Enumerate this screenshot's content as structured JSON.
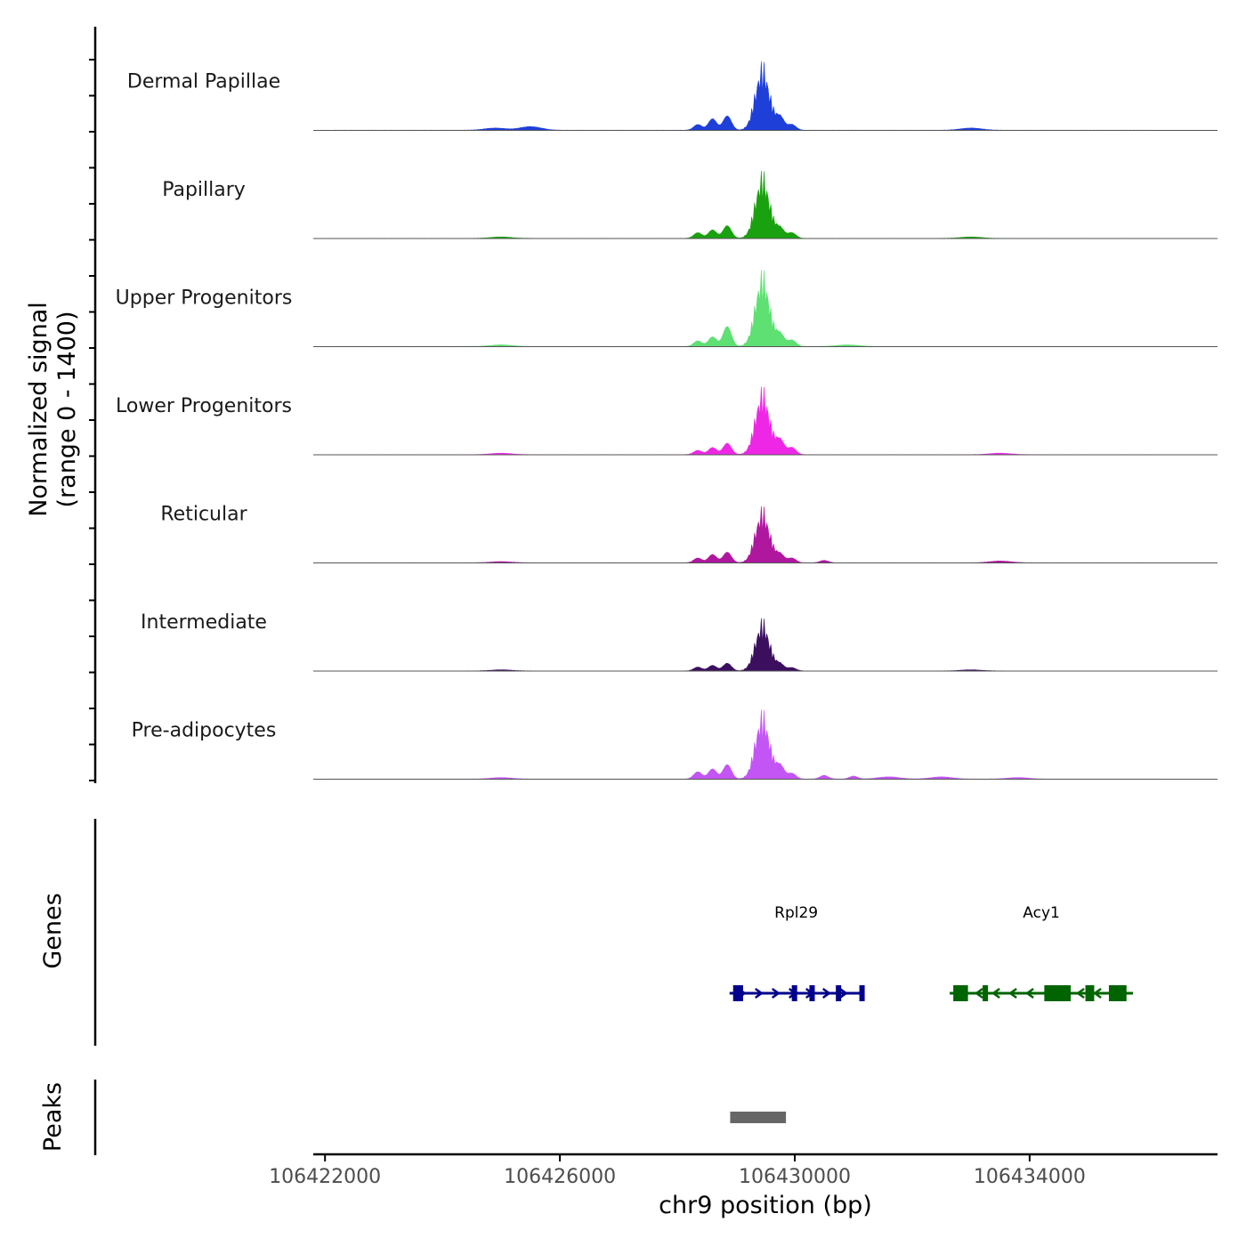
{
  "chart_data": {
    "type": "area",
    "title": "",
    "ylabel_line1": "Normalized signal",
    "ylabel_line2": "(range 0 - 1400)",
    "ylim": [
      0,
      1400
    ],
    "xlabel": "chr9 position (bp)",
    "xlim": [
      106421800,
      106437200
    ],
    "x_ticks": [
      106422000,
      106426000,
      106430000,
      106434000
    ],
    "x_tick_labels": [
      "106422000",
      "106426000",
      "106430000",
      "106434000"
    ],
    "peak_center": 106429450,
    "series": [
      {
        "name": "Dermal Papillae",
        "color": "#1f3fd9",
        "max": 1250,
        "shoulders": [
          [
            106428350,
            0.08
          ],
          [
            106428600,
            0.16
          ],
          [
            106428850,
            0.2
          ],
          [
            106429750,
            0.18
          ],
          [
            106429950,
            0.08
          ]
        ],
        "background": [
          [
            106424900,
            0.03
          ],
          [
            106425500,
            0.05
          ],
          [
            106433000,
            0.03
          ]
        ]
      },
      {
        "name": "Papillary",
        "color": "#1aa10f",
        "max": 1230,
        "shoulders": [
          [
            106428350,
            0.08
          ],
          [
            106428600,
            0.12
          ],
          [
            106428850,
            0.18
          ],
          [
            106429750,
            0.14
          ],
          [
            106429950,
            0.08
          ]
        ],
        "background": [
          [
            106425000,
            0.02
          ],
          [
            106433000,
            0.02
          ]
        ]
      },
      {
        "name": "Upper Progenitors",
        "color": "#5ee073",
        "max": 1400,
        "shoulders": [
          [
            106428350,
            0.07
          ],
          [
            106428600,
            0.12
          ],
          [
            106428850,
            0.25
          ],
          [
            106429750,
            0.15
          ],
          [
            106429950,
            0.08
          ]
        ],
        "background": [
          [
            106425000,
            0.02
          ],
          [
            106430900,
            0.02
          ]
        ]
      },
      {
        "name": "Lower Progenitors",
        "color": "#ee27e6",
        "max": 1240,
        "shoulders": [
          [
            106428350,
            0.06
          ],
          [
            106428600,
            0.1
          ],
          [
            106428850,
            0.16
          ],
          [
            106429750,
            0.2
          ],
          [
            106429950,
            0.1
          ]
        ],
        "background": [
          [
            106425000,
            0.02
          ],
          [
            106433500,
            0.02
          ]
        ]
      },
      {
        "name": "Reticular",
        "color": "#b0179f",
        "max": 1030,
        "shoulders": [
          [
            106428350,
            0.08
          ],
          [
            106428600,
            0.14
          ],
          [
            106428850,
            0.18
          ],
          [
            106429750,
            0.14
          ],
          [
            106429950,
            0.08
          ],
          [
            106430500,
            0.04
          ]
        ],
        "background": [
          [
            106425000,
            0.02
          ],
          [
            106433500,
            0.03
          ]
        ]
      },
      {
        "name": "Intermediate",
        "color": "#3b0e5e",
        "max": 960,
        "shoulders": [
          [
            106428350,
            0.07
          ],
          [
            106428600,
            0.1
          ],
          [
            106428850,
            0.14
          ],
          [
            106429750,
            0.12
          ],
          [
            106429950,
            0.06
          ]
        ],
        "background": [
          [
            106425000,
            0.02
          ],
          [
            106433000,
            0.02
          ]
        ]
      },
      {
        "name": "Pre-adipocytes",
        "color": "#c455f5",
        "max": 1260,
        "shoulders": [
          [
            106428350,
            0.1
          ],
          [
            106428600,
            0.14
          ],
          [
            106428850,
            0.2
          ],
          [
            106429750,
            0.18
          ],
          [
            106429950,
            0.08
          ],
          [
            106430500,
            0.05
          ],
          [
            106431000,
            0.04
          ]
        ],
        "background": [
          [
            106425000,
            0.02
          ],
          [
            106431600,
            0.03
          ],
          [
            106432500,
            0.03
          ],
          [
            106433800,
            0.02
          ]
        ]
      }
    ],
    "genes_label": "Genes",
    "genes": [
      {
        "name": "Rpl29",
        "color": "#00008b",
        "strand": "+",
        "start": 106428950,
        "end": 106431100,
        "exons": [
          [
            106428950,
            106429120
          ],
          [
            106429950,
            106430000
          ],
          [
            106430250,
            106430300
          ],
          [
            106430700,
            106430750
          ],
          [
            106431100,
            106431100
          ]
        ],
        "cds": [
          [
            106430600,
            106431100
          ]
        ]
      },
      {
        "name": "Acy1",
        "color": "#006400",
        "strand": "-",
        "start": 106432700,
        "end": 106435700,
        "exons": [
          [
            106432700,
            106432950
          ],
          [
            106433200,
            106433280
          ],
          [
            106434250,
            106434700
          ],
          [
            106434950,
            106435100
          ],
          [
            106435350,
            106435650
          ]
        ],
        "cds": [
          [
            106432700,
            106435650
          ]
        ]
      }
    ],
    "peaks_label": "Peaks",
    "peaks": [
      {
        "start": 106428900,
        "end": 106429850,
        "color": "#666666"
      }
    ]
  }
}
